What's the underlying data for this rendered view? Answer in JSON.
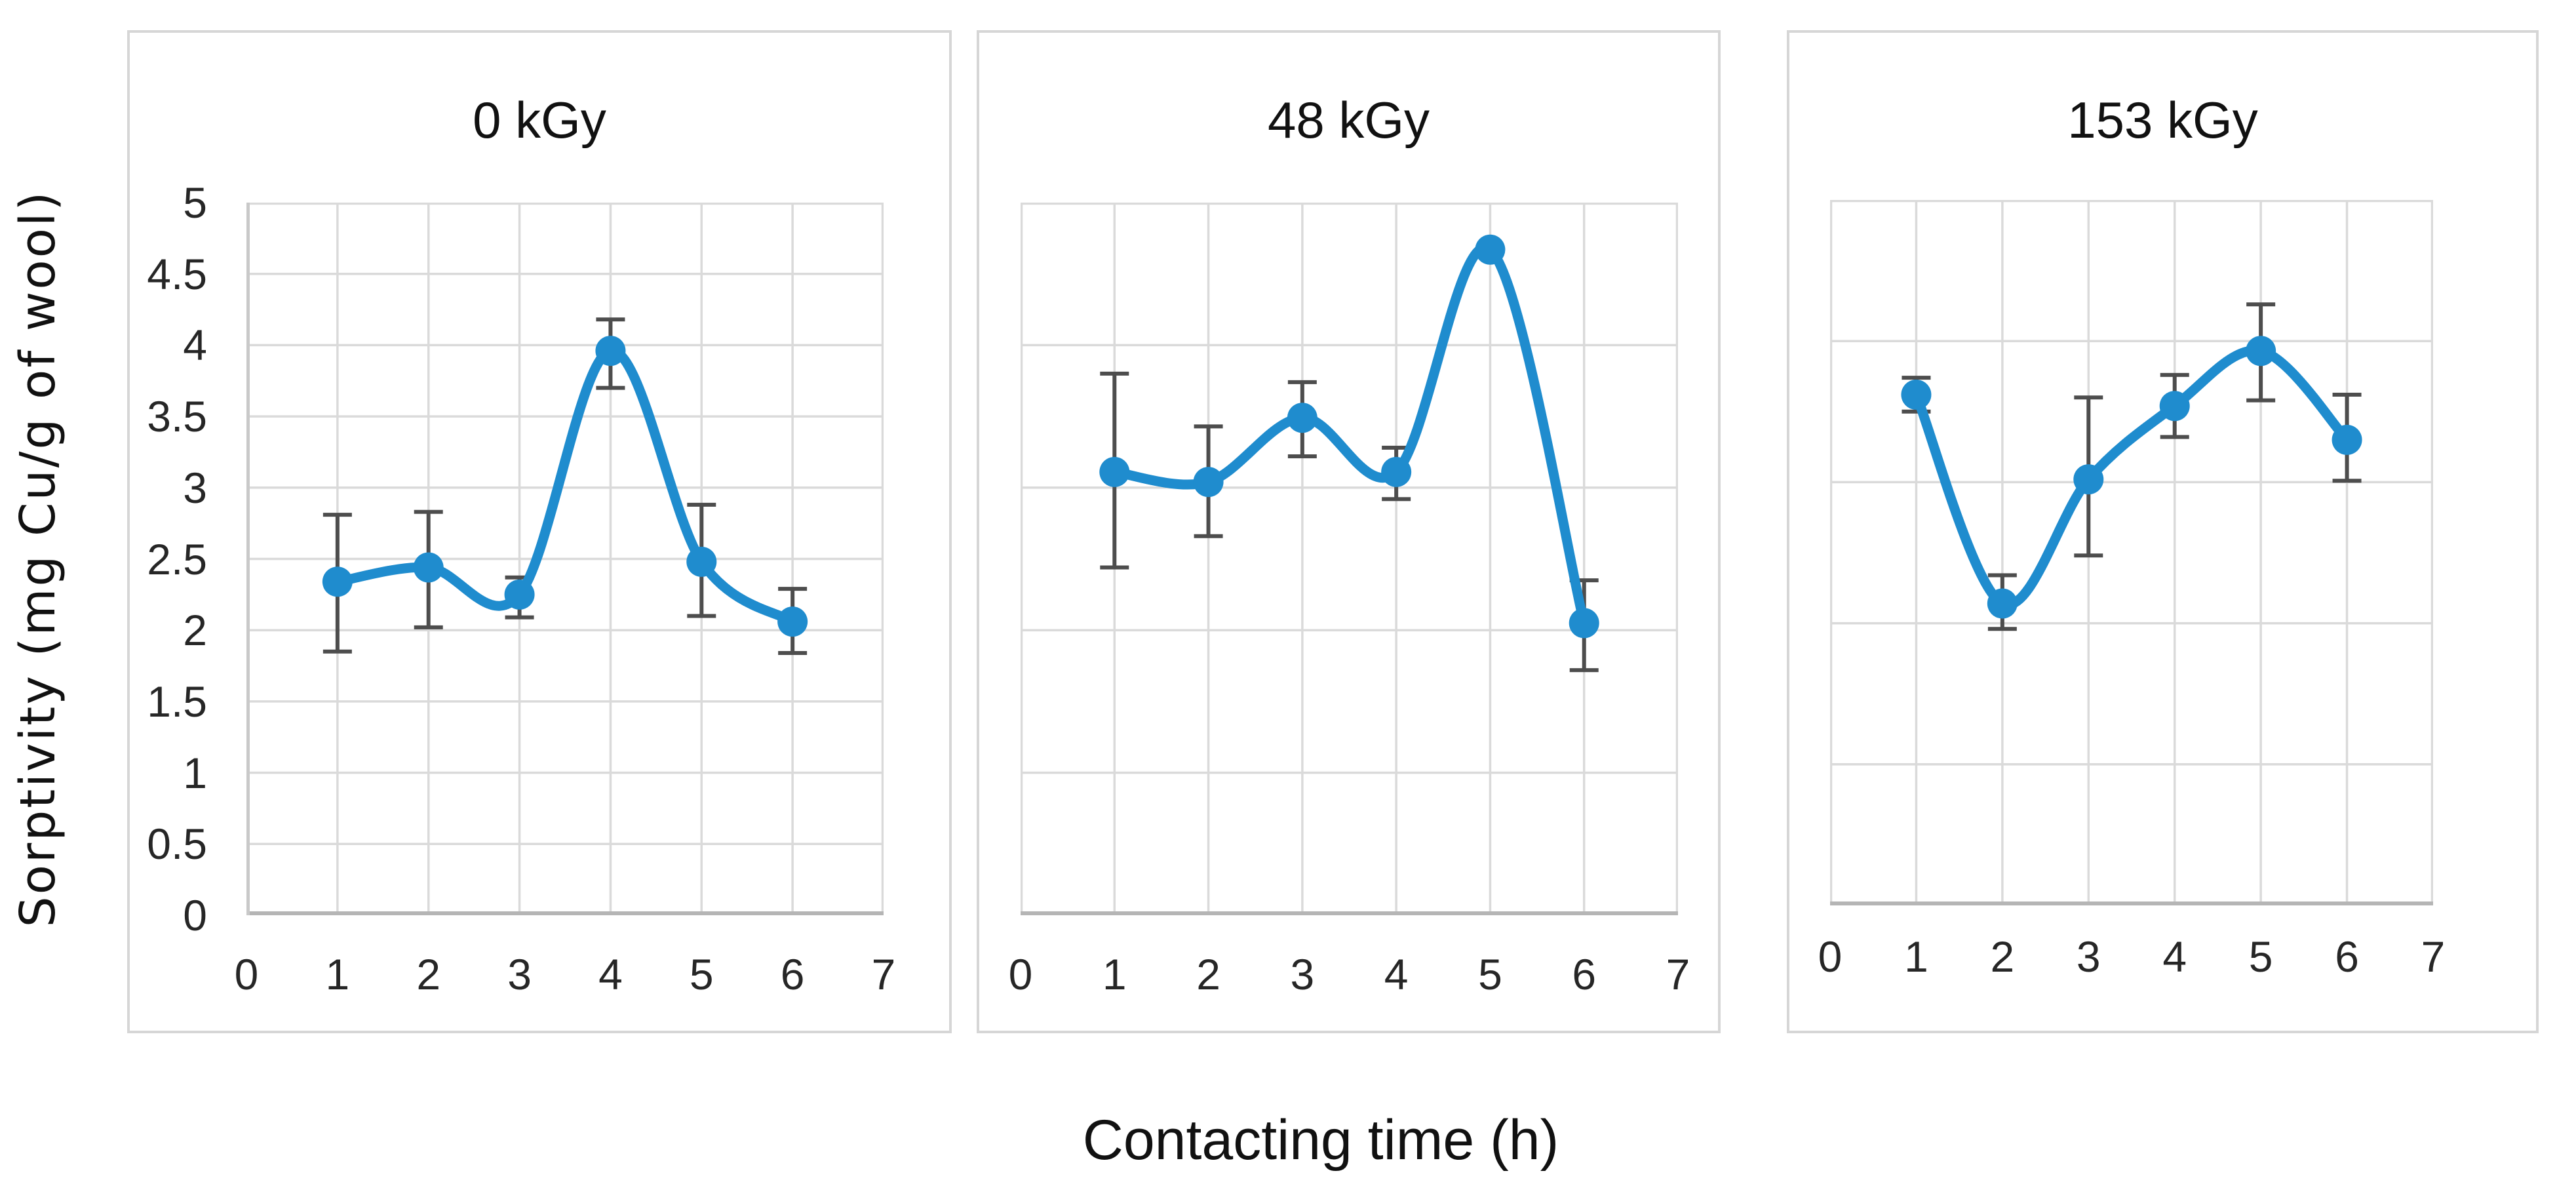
{
  "figure": {
    "x_axis_label": "Contacting time (h)",
    "y_axis_label": "Sorptivity (mg Cu/g of wool)"
  },
  "styles": {
    "line_color": "#1f8cce",
    "marker_color": "#1f8cce",
    "error_bar_color": "#4d4d4d",
    "grid_color": "#dadada",
    "axis_line_color": "#b5b5b5",
    "left_axis_color": "#c9c9c9",
    "panel_border_color": "#d6d6d6",
    "text_color": "#262626"
  },
  "chart_data": [
    {
      "type": "line",
      "title": "0 kGy",
      "x": [
        1,
        2,
        3,
        4,
        5,
        6
      ],
      "y": [
        2.34,
        2.44,
        2.25,
        3.96,
        2.48,
        2.06
      ],
      "y_err_upper": [
        2.81,
        2.83,
        2.37,
        4.18,
        2.88,
        2.29
      ],
      "y_err_lower": [
        1.85,
        2.02,
        2.09,
        3.7,
        2.1,
        1.84
      ],
      "xlim": [
        0,
        7
      ],
      "ylim": [
        0,
        5
      ],
      "x_tick_labels": [
        "0",
        "1",
        "2",
        "3",
        "4",
        "5",
        "6",
        "7"
      ],
      "y_tick_labels": [
        "5",
        "4.5",
        "4",
        "3.5",
        "3",
        "2.5",
        "2",
        "1.5",
        "1",
        "0.5",
        "0"
      ],
      "y_grid_step": 0.5,
      "grid": true,
      "legend": null,
      "smooth": true,
      "error_bars": true
    },
    {
      "type": "line",
      "title": "48 kGy",
      "x": [
        1,
        2,
        3,
        4,
        5,
        6
      ],
      "y": [
        3.11,
        3.04,
        3.49,
        3.11,
        4.67,
        2.05
      ],
      "y_err_upper": [
        3.8,
        3.43,
        3.74,
        3.28,
        4.67,
        2.35
      ],
      "y_err_lower": [
        2.44,
        2.66,
        3.22,
        2.92,
        4.67,
        1.72
      ],
      "xlim": [
        0,
        7
      ],
      "ylim": [
        0,
        5
      ],
      "x_tick_labels": [
        "0",
        "1",
        "2",
        "3",
        "4",
        "5",
        "6",
        "7"
      ],
      "y_tick_labels": [],
      "y_grid_step": 1,
      "grid": true,
      "legend": null,
      "smooth": true,
      "error_bars": true
    },
    {
      "type": "line",
      "title": "153 kGy",
      "x": [
        1,
        2,
        3,
        4,
        5,
        6
      ],
      "y": [
        3.62,
        2.14,
        3.02,
        3.54,
        3.93,
        3.3
      ],
      "y_err_upper": [
        3.74,
        2.34,
        3.6,
        3.76,
        4.26,
        3.62
      ],
      "y_err_lower": [
        3.5,
        1.96,
        2.48,
        3.32,
        3.58,
        3.01
      ],
      "xlim": [
        0,
        7
      ],
      "ylim": [
        0,
        5
      ],
      "x_tick_labels": [
        "0",
        "1",
        "2",
        "3",
        "4",
        "5",
        "6",
        "7"
      ],
      "y_tick_labels": [],
      "y_grid_step": 1,
      "grid": true,
      "legend": null,
      "smooth": true,
      "error_bars": true
    }
  ]
}
